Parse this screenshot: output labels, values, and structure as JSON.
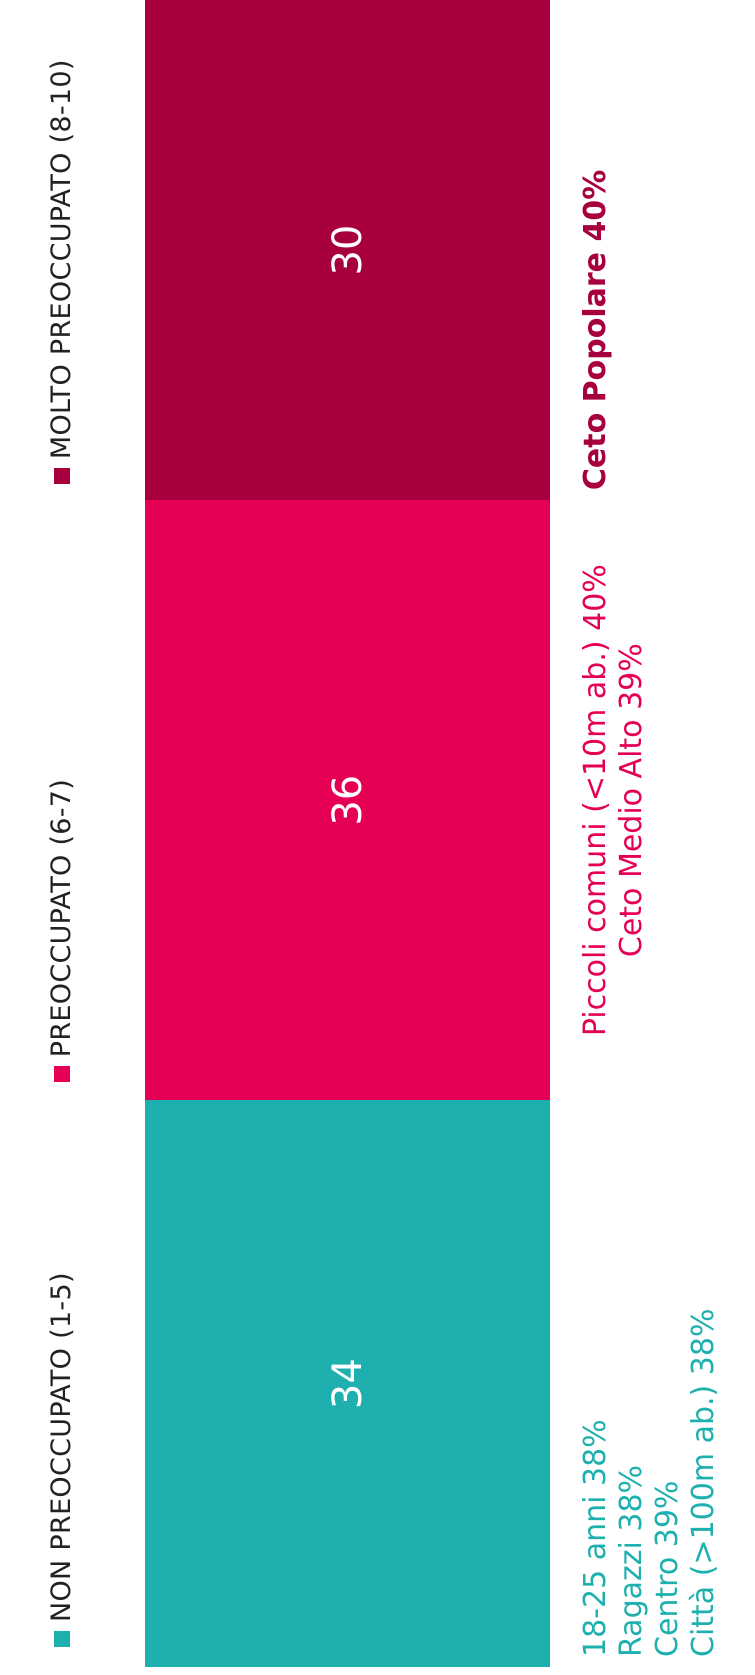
{
  "colors": {
    "non_preoccupato": "#1EB0AE",
    "preoccupato": "#E50056",
    "molto_preoccupato": "#A8003F",
    "text": "#222222"
  },
  "chart_data": {
    "type": "bar",
    "orientation": "stacked-100",
    "categories": [
      ""
    ],
    "series": [
      {
        "name": "NON PREOCCUPATO (1-5)",
        "values": [
          34
        ]
      },
      {
        "name": "PREOCCUPATO (6-7)",
        "values": [
          36
        ]
      },
      {
        "name": "MOLTO PREOCCUPATO (8-10)",
        "values": [
          30
        ]
      }
    ],
    "ylim": [
      0,
      100
    ],
    "legend": "top",
    "grid": false,
    "annotations": [
      {
        "series": "NON PREOCCUPATO (1-5)",
        "lines": [
          "18-25 anni 38%",
          "Ragazzi 38%",
          "Centro 39%",
          "Città (>100m ab.) 38%"
        ],
        "bold": false
      },
      {
        "series": "PREOCCUPATO (6-7)",
        "lines": [
          "Piccoli comuni (<10m ab.) 40%",
          "Ceto Medio Alto 39%"
        ],
        "bold": false
      },
      {
        "series": "MOLTO PREOCCUPATO (8-10)",
        "lines": [
          "Ceto Popolare 40%"
        ],
        "bold": true
      }
    ]
  }
}
